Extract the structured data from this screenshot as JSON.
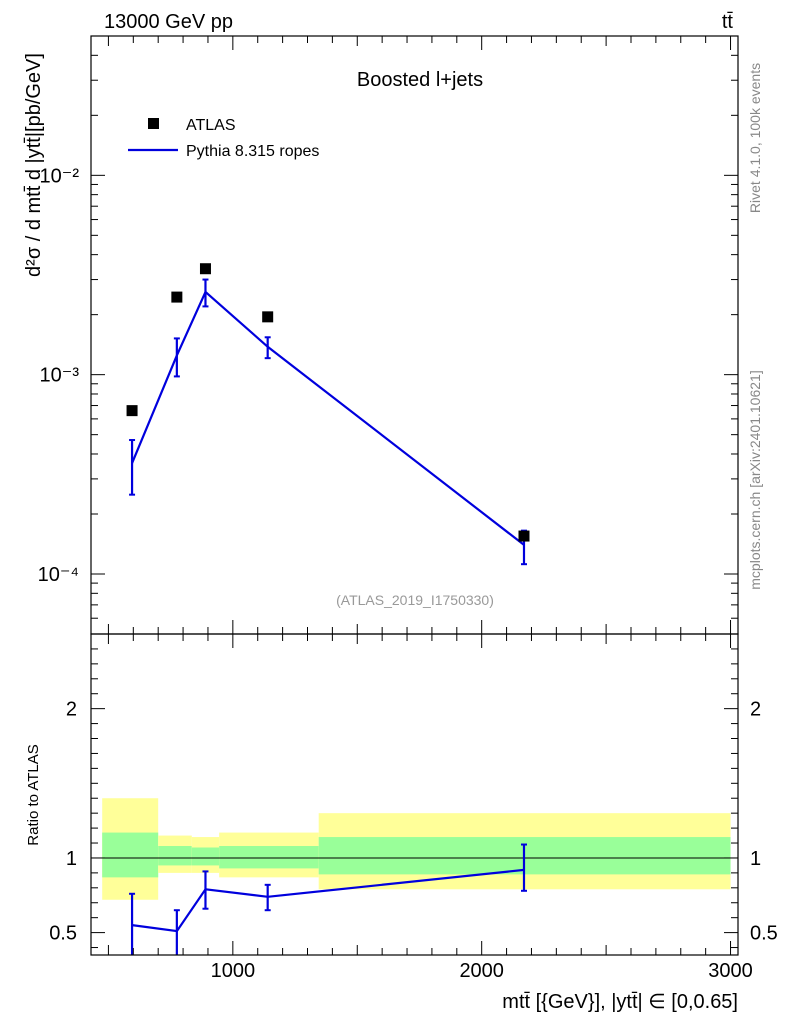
{
  "header": {
    "left": "13000 GeV pp",
    "right": "tt̄"
  },
  "side_texts": {
    "rivet": "Rivet 4.1.0,  100k events",
    "source": "mcplots.cern.ch [arXiv:2401.10621]"
  },
  "colors": {
    "mc": "#0000dd",
    "band_green": "#99ff99",
    "band_yellow": "#ffff99",
    "data": "#000000"
  },
  "chart_data": [
    {
      "type": "scatter",
      "panel": "main",
      "title": "Boosted l+jets",
      "analysis_id": "(ATLAS_2019_I1750330)",
      "ylabel": "d²σ / d mtt̄ d |ytt̄|[pb/GeV]",
      "yscale": "log",
      "ylim": [
        5e-05,
        0.05
      ],
      "xlim": [
        430,
        3030
      ],
      "ytick_labels": [
        "10⁻⁴",
        "10⁻³",
        "10⁻²"
      ],
      "ytick_values": [
        0.0001,
        0.001,
        0.01
      ],
      "legend": {
        "position": "top-left",
        "entries": [
          "ATLAS",
          "Pythia 8.315 ropes"
        ]
      },
      "series": [
        {
          "name": "ATLAS",
          "style": "markers",
          "x": [
            595,
            775,
            890,
            1140,
            2170
          ],
          "y": [
            0.00066,
            0.00245,
            0.0034,
            0.00195,
            0.000155
          ]
        },
        {
          "name": "Pythia 8.315 ropes",
          "style": "line",
          "x": [
            595,
            775,
            890,
            1140,
            2170
          ],
          "y": [
            0.00036,
            0.00125,
            0.0026,
            0.00138,
            0.00014
          ],
          "err_low": [
            0.00025,
            0.00098,
            0.0022,
            0.00121,
            0.000112
          ],
          "err_high": [
            0.00047,
            0.00152,
            0.003,
            0.00154,
            0.000165
          ]
        }
      ]
    },
    {
      "type": "line",
      "panel": "ratio",
      "ylabel": "Ratio to ATLAS",
      "xlabel": "mtt̄ [{GeV}], |ytt̄| ∈ [0,0.65]",
      "ylim": [
        0.35,
        2.5
      ],
      "xlim": [
        430,
        3030
      ],
      "ytick_labels": [
        "0.5",
        "1",
        "2"
      ],
      "ytick_values": [
        0.5,
        1,
        2
      ],
      "xtick_labels": [
        "1000",
        "2000",
        "3000"
      ],
      "xtick_values": [
        1000,
        2000,
        3000
      ],
      "bands": [
        {
          "x_low": 475,
          "x_high": 700,
          "yellow": [
            0.72,
            1.4
          ],
          "green": [
            0.87,
            1.17
          ]
        },
        {
          "x_low": 700,
          "x_high": 835,
          "yellow": [
            0.9,
            1.15
          ],
          "green": [
            0.95,
            1.08
          ]
        },
        {
          "x_low": 835,
          "x_high": 945,
          "yellow": [
            0.9,
            1.14
          ],
          "green": [
            0.95,
            1.07
          ]
        },
        {
          "x_low": 945,
          "x_high": 1345,
          "yellow": [
            0.87,
            1.17
          ],
          "green": [
            0.93,
            1.08
          ]
        },
        {
          "x_low": 1345,
          "x_high": 3000,
          "yellow": [
            0.79,
            1.3
          ],
          "green": [
            0.89,
            1.14
          ]
        }
      ],
      "series": [
        {
          "name": "Pythia 8.315 ropes",
          "x": [
            595,
            775,
            890,
            1140,
            2170
          ],
          "y": [
            0.55,
            0.51,
            0.79,
            0.74,
            0.92
          ],
          "err_low": [
            0.35,
            0.35,
            0.66,
            0.65,
            0.78
          ],
          "err_high": [
            0.76,
            0.65,
            0.91,
            0.82,
            1.09
          ]
        }
      ]
    }
  ]
}
